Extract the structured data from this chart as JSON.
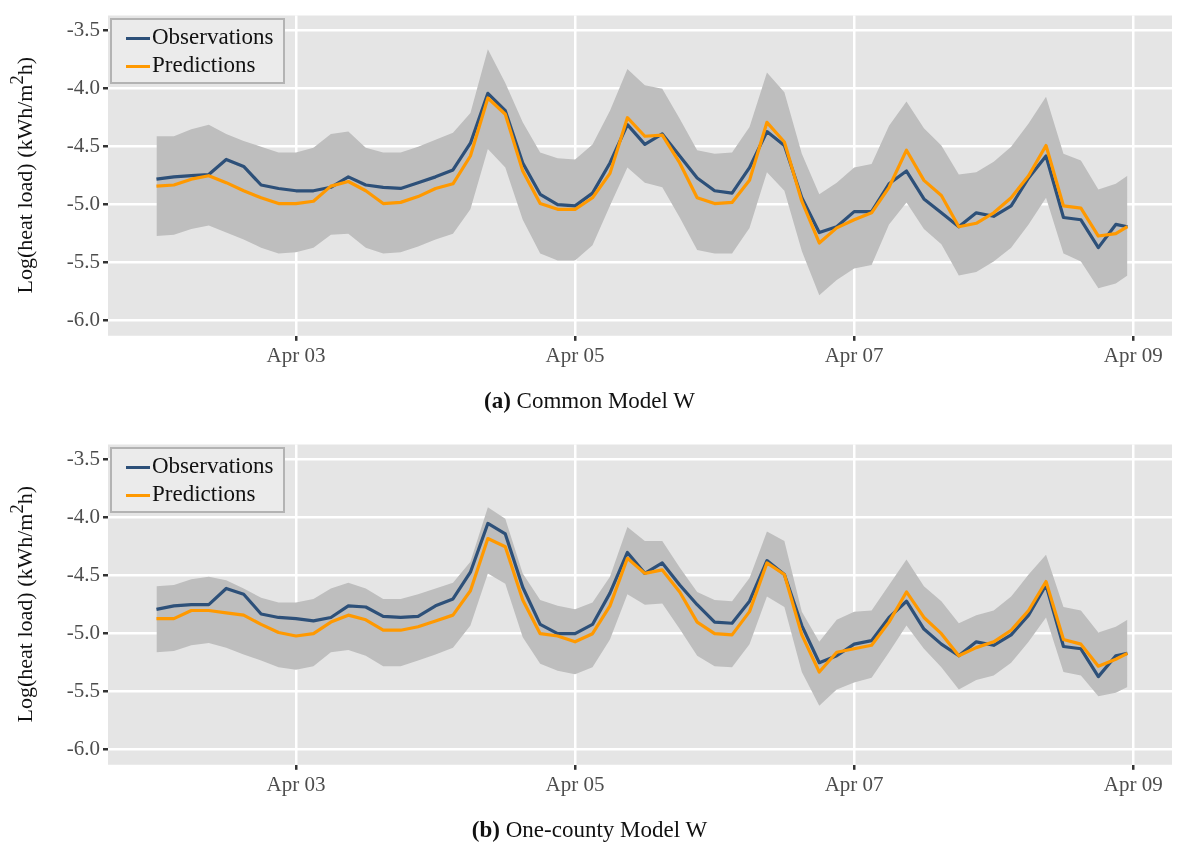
{
  "chart_data": [
    {
      "type": "line",
      "title": "(a) Common Model W",
      "ylabel": "Log(heat load) (kWh/m$^{2}$h)",
      "x": [
        "--04-02T00:00",
        "--04-02T03:00",
        "--04-02T06:00",
        "--04-02T09:00",
        "--04-02T12:00",
        "--04-02T15:00",
        "--04-02T18:00",
        "--04-02T21:00",
        "--04-03T00:00",
        "--04-03T03:00",
        "--04-03T06:00",
        "--04-03T09:00",
        "--04-03T12:00",
        "--04-03T15:00",
        "--04-03T18:00",
        "--04-03T21:00",
        "--04-04T00:00",
        "--04-04T03:00",
        "--04-04T06:00",
        "--04-04T09:00",
        "--04-04T12:00",
        "--04-04T15:00",
        "--04-04T18:00",
        "--04-04T21:00",
        "--04-05T00:00",
        "--04-05T03:00",
        "--04-05T06:00",
        "--04-05T09:00",
        "--04-05T12:00",
        "--04-05T15:00",
        "--04-05T18:00",
        "--04-05T21:00",
        "--04-06T00:00",
        "--04-06T03:00",
        "--04-06T06:00",
        "--04-06T09:00",
        "--04-06T12:00",
        "--04-06T15:00",
        "--04-06T18:00",
        "--04-06T21:00",
        "--04-07T00:00",
        "--04-07T03:00",
        "--04-07T06:00",
        "--04-07T09:00",
        "--04-07T12:00",
        "--04-07T15:00",
        "--04-07T18:00",
        "--04-07T21:00",
        "--04-08T00:00",
        "--04-08T03:00",
        "--04-08T06:00",
        "--04-08T09:00",
        "--04-08T12:00",
        "--04-08T15:00",
        "--04-08T18:00",
        "--04-08T21:00",
        "--04-08T23:00"
      ],
      "xlim": [
        "--04-01T15:40",
        "--04-09T06:40"
      ],
      "xticks": [
        {
          "value": "--04-03",
          "label": "Apr 03"
        },
        {
          "value": "--04-05",
          "label": "Apr 05"
        },
        {
          "value": "--04-07",
          "label": "Apr 07"
        },
        {
          "value": "--04-09",
          "label": "Apr 09"
        }
      ],
      "ylim": [
        -6.13,
        -3.37
      ],
      "yticks": [
        -3.5,
        {
          "value": -4,
          "label": "-4.0"
        },
        -4.5,
        {
          "value": -5,
          "label": "-5.0"
        },
        -5.5,
        {
          "value": -6,
          "label": "-6.0"
        }
      ],
      "grid": true,
      "legend": "top left",
      "series": [
        {
          "name": "Observations",
          "color": "#2d5079",
          "values": [
            -4.78,
            -4.76,
            -4.75,
            -4.74,
            -4.61,
            -4.67,
            -4.83,
            -4.86,
            -4.88,
            -4.88,
            -4.85,
            -4.76,
            -4.83,
            -4.85,
            -4.86,
            -4.81,
            -4.76,
            -4.7,
            -4.47,
            -4.04,
            -4.19,
            -4.64,
            -4.91,
            -5.0,
            -5.01,
            -4.9,
            -4.64,
            -4.31,
            -4.48,
            -4.39,
            -4.58,
            -4.77,
            -4.88,
            -4.9,
            -4.68,
            -4.37,
            -4.49,
            -4.94,
            -5.24,
            -5.19,
            -5.06,
            -5.06,
            -4.82,
            -4.71,
            -4.95,
            -5.07,
            -5.19,
            -5.07,
            -5.1,
            -5.01,
            -4.77,
            -4.58,
            -5.11,
            -5.13,
            -5.37,
            -5.17,
            -5.19
          ]
        },
        {
          "name": "Predictions",
          "color": "#ff9900",
          "values": [
            -4.84,
            -4.83,
            -4.78,
            -4.75,
            -4.81,
            -4.88,
            -4.94,
            -4.99,
            -4.99,
            -4.97,
            -4.84,
            -4.8,
            -4.88,
            -4.99,
            -4.98,
            -4.93,
            -4.86,
            -4.82,
            -4.58,
            -4.08,
            -4.22,
            -4.71,
            -4.99,
            -5.04,
            -5.04,
            -4.94,
            -4.73,
            -4.25,
            -4.41,
            -4.4,
            -4.64,
            -4.94,
            -4.99,
            -4.98,
            -4.79,
            -4.29,
            -4.46,
            -4.97,
            -5.33,
            -5.2,
            -5.13,
            -5.07,
            -4.85,
            -4.53,
            -4.79,
            -4.92,
            -5.19,
            -5.16,
            -5.07,
            -4.94,
            -4.75,
            -4.49,
            -5.01,
            -5.03,
            -5.27,
            -5.25,
            -5.19
          ],
          "upper": [
            -4.41,
            -4.41,
            -4.35,
            -4.31,
            -4.39,
            -4.45,
            -4.5,
            -4.55,
            -4.55,
            -4.51,
            -4.39,
            -4.37,
            -4.51,
            -4.55,
            -4.55,
            -4.5,
            -4.44,
            -4.38,
            -4.21,
            -3.66,
            -3.95,
            -4.29,
            -4.55,
            -4.6,
            -4.61,
            -4.48,
            -4.19,
            -3.83,
            -3.97,
            -4.0,
            -4.26,
            -4.53,
            -4.56,
            -4.55,
            -4.33,
            -3.86,
            -4.03,
            -4.56,
            -4.91,
            -4.81,
            -4.68,
            -4.65,
            -4.32,
            -4.11,
            -4.34,
            -4.49,
            -4.74,
            -4.72,
            -4.63,
            -4.5,
            -4.3,
            -4.07,
            -4.56,
            -4.62,
            -4.87,
            -4.82,
            -4.75
          ],
          "lower": [
            -5.27,
            -5.26,
            -5.21,
            -5.18,
            -5.24,
            -5.3,
            -5.37,
            -5.42,
            -5.41,
            -5.37,
            -5.26,
            -5.25,
            -5.37,
            -5.42,
            -5.41,
            -5.36,
            -5.3,
            -5.25,
            -5.04,
            -4.52,
            -4.68,
            -5.13,
            -5.42,
            -5.48,
            -5.48,
            -5.35,
            -5.01,
            -4.68,
            -4.81,
            -4.85,
            -5.11,
            -5.39,
            -5.42,
            -5.42,
            -5.2,
            -4.72,
            -4.88,
            -5.4,
            -5.78,
            -5.65,
            -5.55,
            -5.52,
            -5.17,
            -4.98,
            -5.21,
            -5.34,
            -5.61,
            -5.58,
            -5.49,
            -5.37,
            -5.17,
            -4.94,
            -5.42,
            -5.49,
            -5.72,
            -5.68,
            -5.61
          ]
        }
      ]
    },
    {
      "type": "line",
      "title": "(b) One-county Model W",
      "ylabel": "Log(heat load) (kWh/m$^{2}$h)",
      "x": [
        "--04-02T00:00",
        "--04-02T03:00",
        "--04-02T06:00",
        "--04-02T09:00",
        "--04-02T12:00",
        "--04-02T15:00",
        "--04-02T18:00",
        "--04-02T21:00",
        "--04-03T00:00",
        "--04-03T03:00",
        "--04-03T06:00",
        "--04-03T09:00",
        "--04-03T12:00",
        "--04-03T15:00",
        "--04-03T18:00",
        "--04-03T21:00",
        "--04-04T00:00",
        "--04-04T03:00",
        "--04-04T06:00",
        "--04-04T09:00",
        "--04-04T12:00",
        "--04-04T15:00",
        "--04-04T18:00",
        "--04-04T21:00",
        "--04-05T00:00",
        "--04-05T03:00",
        "--04-05T06:00",
        "--04-05T09:00",
        "--04-05T12:00",
        "--04-05T15:00",
        "--04-05T18:00",
        "--04-05T21:00",
        "--04-06T00:00",
        "--04-06T03:00",
        "--04-06T06:00",
        "--04-06T09:00",
        "--04-06T12:00",
        "--04-06T15:00",
        "--04-06T18:00",
        "--04-06T21:00",
        "--04-07T00:00",
        "--04-07T03:00",
        "--04-07T06:00",
        "--04-07T09:00",
        "--04-07T12:00",
        "--04-07T15:00",
        "--04-07T18:00",
        "--04-07T21:00",
        "--04-08T00:00",
        "--04-08T03:00",
        "--04-08T06:00",
        "--04-08T09:00",
        "--04-08T12:00",
        "--04-08T15:00",
        "--04-08T18:00",
        "--04-08T21:00",
        "--04-08T23:00"
      ],
      "xlim": [
        "--04-01T15:40",
        "--04-09T06:40"
      ],
      "xticks": [
        {
          "value": "--04-03",
          "label": "Apr 03"
        },
        {
          "value": "--04-05",
          "label": "Apr 05"
        },
        {
          "value": "--04-07",
          "label": "Apr 07"
        },
        {
          "value": "--04-09",
          "label": "Apr 09"
        }
      ],
      "ylim": [
        -6.13,
        -3.37
      ],
      "yticks": [
        -3.5,
        {
          "value": -4,
          "label": "-4.0"
        },
        -4.5,
        {
          "value": -5,
          "label": "-5.0"
        },
        -5.5,
        {
          "value": -6,
          "label": "-6.0"
        }
      ],
      "grid": true,
      "legend": "top left",
      "series": [
        {
          "name": "Observations",
          "color": "#2d5079",
          "values": [
            -4.79,
            -4.76,
            -4.75,
            -4.75,
            -4.61,
            -4.66,
            -4.83,
            -4.86,
            -4.87,
            -4.89,
            -4.86,
            -4.76,
            -4.77,
            -4.85,
            -4.86,
            -4.85,
            -4.76,
            -4.7,
            -4.47,
            -4.05,
            -4.14,
            -4.6,
            -4.92,
            -5.0,
            -5.0,
            -4.92,
            -4.65,
            -4.3,
            -4.48,
            -4.39,
            -4.58,
            -4.75,
            -4.9,
            -4.91,
            -4.72,
            -4.37,
            -4.49,
            -4.93,
            -5.25,
            -5.19,
            -5.09,
            -5.06,
            -4.86,
            -4.72,
            -4.96,
            -5.09,
            -5.19,
            -5.07,
            -5.1,
            -5.01,
            -4.84,
            -4.58,
            -5.11,
            -5.13,
            -5.37,
            -5.19,
            -5.17
          ]
        },
        {
          "name": "Predictions",
          "color": "#ff9900",
          "values": [
            -4.87,
            -4.87,
            -4.8,
            -4.8,
            -4.82,
            -4.84,
            -4.92,
            -4.99,
            -5.02,
            -5.0,
            -4.9,
            -4.84,
            -4.88,
            -4.97,
            -4.97,
            -4.94,
            -4.89,
            -4.84,
            -4.63,
            -4.18,
            -4.25,
            -4.71,
            -5.0,
            -5.02,
            -5.07,
            -5.0,
            -4.76,
            -4.35,
            -4.48,
            -4.45,
            -4.64,
            -4.9,
            -5.0,
            -5.01,
            -4.81,
            -4.39,
            -4.49,
            -5.01,
            -5.33,
            -5.16,
            -5.13,
            -5.1,
            -4.9,
            -4.64,
            -4.86,
            -5.0,
            -5.19,
            -5.12,
            -5.07,
            -4.97,
            -4.8,
            -4.55,
            -5.05,
            -5.09,
            -5.28,
            -5.22,
            -5.17
          ],
          "upper": [
            -4.59,
            -4.58,
            -4.53,
            -4.51,
            -4.54,
            -4.61,
            -4.69,
            -4.73,
            -4.73,
            -4.7,
            -4.61,
            -4.56,
            -4.61,
            -4.7,
            -4.7,
            -4.66,
            -4.61,
            -4.56,
            -4.38,
            -3.91,
            -4.01,
            -4.48,
            -4.71,
            -4.76,
            -4.79,
            -4.73,
            -4.51,
            -4.08,
            -4.2,
            -4.2,
            -4.43,
            -4.64,
            -4.71,
            -4.72,
            -4.52,
            -4.12,
            -4.2,
            -4.81,
            -5.07,
            -4.88,
            -4.81,
            -4.8,
            -4.58,
            -4.36,
            -4.59,
            -4.72,
            -4.91,
            -4.84,
            -4.8,
            -4.68,
            -4.49,
            -4.32,
            -4.77,
            -4.8,
            -4.99,
            -4.94,
            -4.88
          ],
          "lower": [
            -5.16,
            -5.15,
            -5.1,
            -5.08,
            -5.12,
            -5.18,
            -5.23,
            -5.29,
            -5.31,
            -5.28,
            -5.16,
            -5.14,
            -5.19,
            -5.28,
            -5.28,
            -5.23,
            -5.18,
            -5.12,
            -4.93,
            -4.48,
            -4.57,
            -5.03,
            -5.26,
            -5.32,
            -5.35,
            -5.29,
            -5.05,
            -4.66,
            -4.75,
            -4.74,
            -4.96,
            -5.19,
            -5.28,
            -5.29,
            -5.09,
            -4.68,
            -4.77,
            -5.33,
            -5.62,
            -5.48,
            -5.42,
            -5.38,
            -5.16,
            -4.93,
            -5.13,
            -5.29,
            -5.48,
            -5.4,
            -5.36,
            -5.25,
            -5.07,
            -4.86,
            -5.33,
            -5.36,
            -5.54,
            -5.51,
            -5.46
          ]
        }
      ]
    }
  ]
}
